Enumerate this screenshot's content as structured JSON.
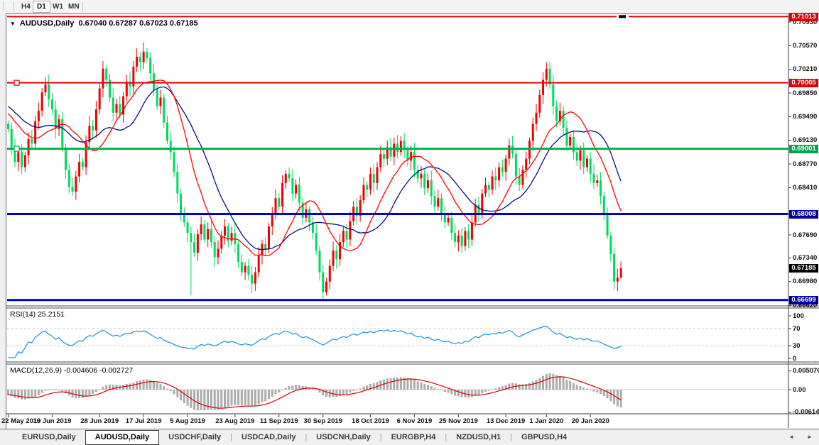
{
  "toolbar": {
    "timeframe_buttons": [
      "H4",
      "D1",
      "W1",
      "MN"
    ],
    "active_timeframe": "D1"
  },
  "chart_header": {
    "dropdown_icon": "▼",
    "symbol_title": "AUDUSD,Daily",
    "ohlc_text": "0.67040 0.67287 0.67023 0.67185"
  },
  "price_axis": {
    "ticks": [
      "0.70930",
      "0.70570",
      "0.70210",
      "0.69850",
      "0.69490",
      "0.69130",
      "0.68770",
      "0.68410",
      "0.67690",
      "0.67340",
      "0.66980",
      "0.66620"
    ],
    "badges": [
      {
        "label": "0.71013",
        "bg": "#dd0000",
        "fg": "#ffffff"
      },
      {
        "label": "0.70005",
        "bg": "#dd0000",
        "fg": "#ffffff"
      },
      {
        "label": "0.69001",
        "bg": "#00a44e",
        "fg": "#ffffff"
      },
      {
        "label": "0.68008",
        "bg": "#0000a0",
        "fg": "#ffffff"
      },
      {
        "label": "0.67185",
        "bg": "#000000",
        "fg": "#ffffff"
      },
      {
        "label": "0.66699",
        "bg": "#0000a0",
        "fg": "#ffffff"
      }
    ]
  },
  "indicators": {
    "rsi": {
      "label": "RSI(14) 25.2151",
      "value": 25.2151,
      "period": 14,
      "line_color": "#1e8fdf",
      "levels": [
        70,
        30
      ],
      "axis_ticks": [
        100,
        70,
        30,
        0
      ]
    },
    "macd": {
      "label": "MACD(12,26,9) -0.004606 -0.002727",
      "macd_value": -0.004606,
      "signal_value": -0.002727,
      "histogram_color": "#ababab",
      "signal_color": "#dd0000",
      "axis_ticks": [
        0.005076,
        0.0,
        -0.006148
      ]
    }
  },
  "chart_data": {
    "type": "candlestick",
    "symbol": "AUDUSD",
    "timeframe": "Daily",
    "last_candle": {
      "open": 0.6704,
      "high": 0.67287,
      "low": 0.67023,
      "close": 0.67185
    },
    "bull_color": "#f20000",
    "bear_color": "#00d95f",
    "ma_fast": {
      "period": 13,
      "color": "#ff0000"
    },
    "ma_slow": {
      "period": 21,
      "color": "#001080"
    },
    "hlines": [
      {
        "price": 0.71013,
        "color": "#e80000",
        "width": 2,
        "gap_marker": true
      },
      {
        "price": 0.70005,
        "color": "#e80000",
        "width": 2,
        "handle": true
      },
      {
        "price": 0.69001,
        "color": "#00b050",
        "width": 3,
        "handle": true
      },
      {
        "price": 0.68008,
        "color": "#0000c8",
        "width": 3
      },
      {
        "price": 0.66699,
        "color": "#0000c8",
        "width": 3
      }
    ],
    "price_ticks": [
      0.7093,
      0.7057,
      0.7021,
      0.6985,
      0.6949,
      0.6913,
      0.6877,
      0.6841,
      0.6769,
      0.6734,
      0.6698,
      0.6662
    ],
    "date_ticks": [
      {
        "i": 0,
        "label": "22 May 2019"
      },
      {
        "i": 13,
        "label": "10 Jun 2019"
      },
      {
        "i": 27,
        "label": "28 Jun 2019"
      },
      {
        "i": 40,
        "label": "17 Jul 2019"
      },
      {
        "i": 53,
        "label": "5 Aug 2019"
      },
      {
        "i": 67,
        "label": "23 Aug 2019"
      },
      {
        "i": 80,
        "label": "11 Sep 2019"
      },
      {
        "i": 93,
        "label": "30 Sep 2019"
      },
      {
        "i": 107,
        "label": "18 Oct 2019"
      },
      {
        "i": 120,
        "label": "6 Nov 2019"
      },
      {
        "i": 133,
        "label": "25 Nov 2019"
      },
      {
        "i": 147,
        "label": "13 Dec 2019"
      },
      {
        "i": 159,
        "label": "1 Jan 2020"
      },
      {
        "i": 172,
        "label": "20 Jan 2020"
      }
    ],
    "closes": [
      0.693,
      0.6902,
      0.688,
      0.6895,
      0.6872,
      0.689,
      0.6915,
      0.6908,
      0.6942,
      0.6958,
      0.6986,
      0.6998,
      0.6975,
      0.696,
      0.693,
      0.6945,
      0.6902,
      0.6868,
      0.6842,
      0.6835,
      0.6858,
      0.688,
      0.6872,
      0.691,
      0.6935,
      0.6928,
      0.696,
      0.6992,
      0.7022,
      0.7005,
      0.6978,
      0.6955,
      0.6968,
      0.6952,
      0.698,
      0.7002,
      0.6995,
      0.7025,
      0.704,
      0.7032,
      0.7048,
      0.7038,
      0.7015,
      0.699,
      0.6965,
      0.6978,
      0.694,
      0.6912,
      0.6895,
      0.6865,
      0.6832,
      0.68,
      0.6788,
      0.6772,
      0.6758,
      0.6742,
      0.677,
      0.6785,
      0.6762,
      0.6778,
      0.6758,
      0.6735,
      0.6748,
      0.6768,
      0.6782,
      0.676,
      0.6772,
      0.6755,
      0.6728,
      0.6712,
      0.6722,
      0.6708,
      0.6695,
      0.6712,
      0.6738,
      0.6755,
      0.6748,
      0.6782,
      0.6802,
      0.6825,
      0.6812,
      0.6848,
      0.6862,
      0.6855,
      0.6832,
      0.6845,
      0.6818,
      0.6795,
      0.6808,
      0.6788,
      0.6772,
      0.6745,
      0.6712,
      0.6682,
      0.6698,
      0.6722,
      0.6745,
      0.6732,
      0.6758,
      0.6775,
      0.6762,
      0.679,
      0.6812,
      0.6798,
      0.6822,
      0.6845,
      0.6838,
      0.6862,
      0.6848,
      0.6872,
      0.6892,
      0.6885,
      0.6902,
      0.6888,
      0.6908,
      0.6895,
      0.6912,
      0.6898,
      0.6882,
      0.6895,
      0.6868,
      0.6855,
      0.6862,
      0.684,
      0.6852,
      0.6828,
      0.6812,
      0.6825,
      0.6802,
      0.6788,
      0.6795,
      0.6772,
      0.6758,
      0.6768,
      0.6752,
      0.6775,
      0.6762,
      0.6788,
      0.6815,
      0.6802,
      0.6832,
      0.6845,
      0.6838,
      0.6858,
      0.6852,
      0.6872,
      0.6865,
      0.6885,
      0.6905,
      0.6892,
      0.6858,
      0.6845,
      0.6868,
      0.6885,
      0.6912,
      0.6938,
      0.6955,
      0.6982,
      0.7005,
      0.7022,
      0.6998,
      0.6965,
      0.6942,
      0.6958,
      0.6932,
      0.6905,
      0.6918,
      0.6895,
      0.6882,
      0.6898,
      0.6872,
      0.6885,
      0.6862,
      0.6848,
      0.6852,
      0.6828,
      0.68,
      0.6768,
      0.674,
      0.6698,
      0.6704,
      0.67185
    ],
    "low_overrides": {
      "54": 0.6677,
      "93": 0.667,
      "179": 0.6686,
      "181": 0.67023
    },
    "high_overrides": {
      "40": 0.7062,
      "159": 0.7032,
      "181": 0.67287
    }
  },
  "tabs": {
    "items": [
      {
        "label": "EURUSD,Daily",
        "active": false
      },
      {
        "label": "AUDUSD,Daily",
        "active": true
      },
      {
        "label": "USDCHF,Daily",
        "active": false
      },
      {
        "label": "USDCAD,Daily",
        "active": false
      },
      {
        "label": "USDCNH,Daily",
        "active": false
      },
      {
        "label": "EURGBP,H4",
        "active": false
      },
      {
        "label": "NZDUSD,H1",
        "active": false
      },
      {
        "label": "GBPUSD,H4",
        "active": false
      }
    ],
    "scroll_left_icon": "◄",
    "scroll_right_icon": "►"
  }
}
